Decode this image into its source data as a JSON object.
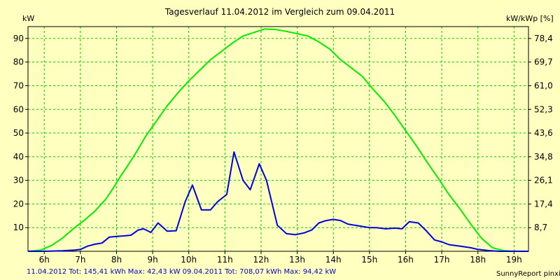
{
  "title": "Tagesverlauf 11.04.2012 im Vergleich zum 09.04.2011",
  "units": {
    "left": "kW",
    "right": "kW/kWp [%]"
  },
  "footer": {
    "left": "11.04.2012 Tot: 145,41 kWh Max: 42,43 kW 09.04.2011 Tot: 708,07 kWh Max: 94,42 kW",
    "right": "SunnyReport pinxit"
  },
  "colors": {
    "background": "#FFFFC0",
    "grid": "#00CC00",
    "series_2012": "#0000DD",
    "series_2011": "#00EE00"
  },
  "chart_data": {
    "type": "line",
    "xlabel": "",
    "ylabel": "kW",
    "y2label": "kW/kWp [%]",
    "xlim": [
      5.55,
      19.4
    ],
    "ylim": [
      0,
      95
    ],
    "x_ticks": [
      6,
      7,
      8,
      9,
      10,
      11,
      12,
      13,
      14,
      15,
      16,
      17,
      18,
      19
    ],
    "x_tick_labels": [
      "6h",
      "7h",
      "8h",
      "9h",
      "10h",
      "11h",
      "12h",
      "13h",
      "14h",
      "15h",
      "16h",
      "17h",
      "18h",
      "19h"
    ],
    "y_ticks": [
      10,
      20,
      30,
      40,
      50,
      60,
      70,
      80,
      90
    ],
    "y2_tick_labels": [
      "8,7",
      "17,4",
      "26,1",
      "34,8",
      "43,6",
      "52,3",
      "61,0",
      "69,7",
      "78,4"
    ],
    "grid": true,
    "series": [
      {
        "name": "11.04.2012",
        "color": "#0000DD",
        "x": [
          5.55,
          6.0,
          6.5,
          6.85,
          7.0,
          7.2,
          7.4,
          7.6,
          7.8,
          8.0,
          8.2,
          8.4,
          8.6,
          8.75,
          8.95,
          9.15,
          9.4,
          9.65,
          9.9,
          10.1,
          10.35,
          10.6,
          10.8,
          11.05,
          11.25,
          11.5,
          11.7,
          11.95,
          12.15,
          12.45,
          12.7,
          12.95,
          13.2,
          13.4,
          13.6,
          13.8,
          14.0,
          14.2,
          14.4,
          14.6,
          14.8,
          15.0,
          15.2,
          15.45,
          15.7,
          15.9,
          16.1,
          16.35,
          16.55,
          16.8,
          17.0,
          17.2,
          17.5,
          17.8,
          18.0,
          18.3,
          18.6,
          19.0,
          19.4
        ],
        "y": [
          0,
          0,
          0.2,
          0.5,
          0.8,
          2.2,
          3.0,
          3.5,
          6.0,
          6.3,
          6.5,
          6.8,
          9.0,
          9.5,
          8.0,
          12.0,
          8.5,
          8.7,
          21.0,
          28.0,
          17.5,
          17.5,
          21.0,
          24.0,
          42.0,
          30.0,
          26.0,
          37.0,
          30.0,
          11.0,
          7.5,
          7.0,
          7.8,
          9.0,
          12.0,
          13.0,
          13.5,
          13.0,
          11.5,
          11.0,
          10.5,
          10.0,
          10.0,
          9.5,
          9.8,
          9.5,
          12.5,
          12.0,
          9.0,
          4.8,
          4.0,
          2.8,
          2.2,
          1.5,
          0.8,
          0.3,
          0,
          0,
          0
        ]
      },
      {
        "name": "09.04.2011",
        "color": "#00EE00",
        "x": [
          5.55,
          5.9,
          6.2,
          6.5,
          6.8,
          7.1,
          7.4,
          7.7,
          7.9,
          8.1,
          8.3,
          8.55,
          8.8,
          9.1,
          9.4,
          9.7,
          10.0,
          10.3,
          10.6,
          10.9,
          11.2,
          11.5,
          11.8,
          12.1,
          12.4,
          12.7,
          13.0,
          13.3,
          13.6,
          13.9,
          14.2,
          14.5,
          14.8,
          15.1,
          15.4,
          15.7,
          16.0,
          16.3,
          16.6,
          16.9,
          17.2,
          17.5,
          17.8,
          18.1,
          18.4,
          18.7,
          19.0,
          19.4
        ],
        "y": [
          0,
          0.5,
          2.5,
          5.5,
          9.5,
          13.0,
          17.0,
          22.0,
          26.5,
          31.5,
          36.0,
          42.0,
          48.5,
          55.0,
          61.5,
          67.0,
          72.0,
          76.5,
          81.0,
          84.5,
          88.0,
          91.0,
          92.5,
          94.0,
          93.8,
          93.0,
          92.0,
          91.0,
          88.5,
          85.5,
          81.0,
          77.5,
          74.0,
          68.5,
          63.5,
          57.5,
          51.0,
          44.5,
          37.5,
          31.0,
          24.0,
          18.0,
          11.5,
          5.5,
          1.5,
          0.3,
          0,
          0
        ]
      }
    ]
  }
}
